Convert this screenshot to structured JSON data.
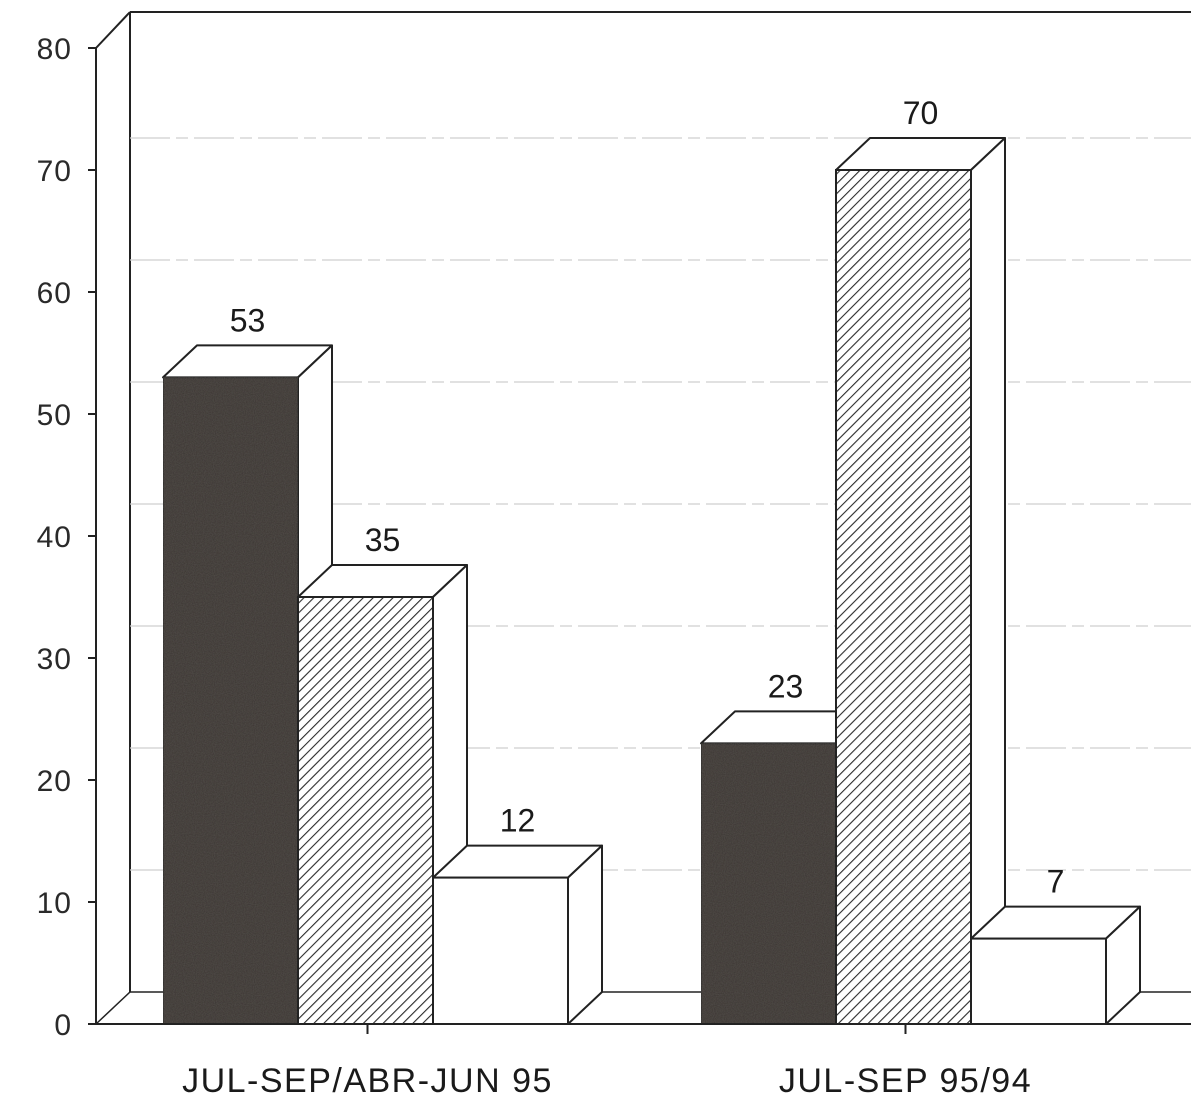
{
  "chart_data": {
    "type": "bar",
    "style": "3d-clustered",
    "categories": [
      "JUL-SEP/ABR-JUN 95",
      "JUL-SEP 95/94"
    ],
    "series": [
      {
        "values": [
          53,
          23
        ],
        "fill": "dark-speckled",
        "color": "#3a3632"
      },
      {
        "values": [
          35,
          70
        ],
        "fill": "diagonal-hatch",
        "color": "#8a8a8a"
      },
      {
        "values": [
          12,
          7
        ],
        "fill": "white",
        "color": "#ffffff"
      }
    ],
    "data_labels": [
      [
        "53",
        "23"
      ],
      [
        "35",
        "70"
      ],
      [
        "12",
        "7"
      ]
    ],
    "yticks": [
      0,
      10,
      20,
      30,
      40,
      50,
      60,
      70,
      80
    ],
    "ylim": [
      0,
      80
    ],
    "title": "",
    "xlabel": "",
    "ylabel": "",
    "grid": true,
    "legend": "none"
  }
}
